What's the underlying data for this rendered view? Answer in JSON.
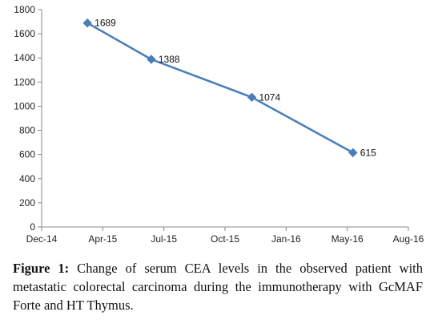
{
  "chart_data": {
    "type": "line",
    "title": "",
    "xlabel": "",
    "ylabel": "",
    "ylim": [
      0,
      1800
    ],
    "yticks": [
      0,
      200,
      400,
      600,
      800,
      1000,
      1200,
      1400,
      1600,
      1800
    ],
    "xticks": [
      "Dec-14",
      "Apr-15",
      "Jul-15",
      "Oct-15",
      "Jan-16",
      "May-16",
      "Aug-16"
    ],
    "xlim": [
      "2014-12-01",
      "2016-08-01"
    ],
    "grid": false,
    "legend": "none",
    "series": [
      {
        "color": "#4a7ebb",
        "marker": "diamond",
        "points": [
          {
            "x": "2015-02-15",
            "y": 1689,
            "label": "1689"
          },
          {
            "x": "2015-06-01",
            "y": 1388,
            "label": "1388"
          },
          {
            "x": "2015-11-15",
            "y": 1074,
            "label": "1074"
          },
          {
            "x": "2016-05-01",
            "y": 615,
            "label": "615"
          }
        ]
      }
    ]
  },
  "caption": {
    "label": "Figure 1:",
    "text": " Change of serum CEA levels in the observed patient with metastatic colorectal carcinoma during the immunotherapy with GcMAF Forte and HT Thymus."
  }
}
